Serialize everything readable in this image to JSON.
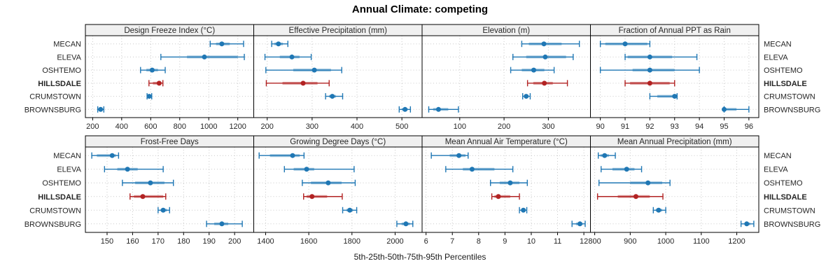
{
  "chart_data": {
    "type": "dotplot-trellis",
    "title": "Annual Climate: competing",
    "xlabel": "5th-25th-50th-75th-95th Percentiles",
    "percentiles": [
      "5th",
      "25th",
      "50th",
      "75th",
      "95th"
    ],
    "categories": [
      "MECAN",
      "ELEVA",
      "OSHTEMO",
      "HILLSDALE",
      "CRUMSTOWN",
      "BROWNSBURG"
    ],
    "highlight_category": "HILLSDALE",
    "legend_position": "none",
    "grid": true,
    "layout": {
      "rows": 2,
      "cols": 4
    },
    "colors": {
      "normal": "#1f77b4",
      "highlight": "#b22222",
      "strip_bg": "#f0f0f0",
      "grid": "#c9c9c9",
      "border": "#000000",
      "text": "#262626"
    },
    "panels": [
      {
        "title": "Design Freeze Index (°C)",
        "xlim": [
          150,
          1310
        ],
        "ticks": [
          200,
          400,
          600,
          800,
          1000,
          1200
        ],
        "series": [
          [
            1010,
            1050,
            1090,
            1145,
            1240
          ],
          [
            670,
            850,
            970,
            1200,
            1245
          ],
          [
            530,
            570,
            610,
            650,
            700
          ],
          [
            588,
            615,
            658,
            675,
            684
          ],
          [
            575,
            583,
            590,
            597,
            607
          ],
          [
            235,
            245,
            255,
            265,
            277
          ]
        ]
      },
      {
        "title": "Effective Precipitation (mm)",
        "xlim": [
          170,
          545
        ],
        "ticks": [
          200,
          300,
          400,
          500
        ],
        "series": [
          [
            210,
            216,
            225,
            235,
            246
          ],
          [
            195,
            228,
            255,
            272,
            298
          ],
          [
            197,
            258,
            305,
            342,
            366
          ],
          [
            198,
            234,
            280,
            312,
            338
          ],
          [
            330,
            338,
            345,
            353,
            368
          ],
          [
            494,
            500,
            507,
            513,
            519
          ]
        ]
      },
      {
        "title": "Elevation (m)",
        "xlim": [
          15,
          395
        ],
        "ticks": [
          100,
          200,
          300
        ],
        "series": [
          [
            240,
            256,
            290,
            330,
            370
          ],
          [
            220,
            250,
            293,
            340,
            356
          ],
          [
            215,
            240,
            267,
            291,
            313
          ],
          [
            253,
            266,
            291,
            310,
            343
          ],
          [
            242,
            246,
            250,
            255,
            259
          ],
          [
            30,
            40,
            52,
            74,
            97
          ]
        ]
      },
      {
        "title": "Fraction of Annual PPT as Rain",
        "xlim": [
          89.6,
          96.4
        ],
        "ticks": [
          90,
          91,
          92,
          93,
          94,
          95,
          96
        ],
        "series": [
          [
            90,
            90.2,
            91,
            91.9,
            92
          ],
          [
            91,
            91.1,
            92,
            92.9,
            93.9
          ],
          [
            90,
            91.3,
            92,
            93,
            94
          ],
          [
            91,
            91.2,
            92,
            92.8,
            93
          ],
          [
            92,
            92.3,
            93,
            93,
            93.1
          ],
          [
            95,
            95,
            95,
            95.5,
            96
          ]
        ]
      },
      {
        "title": "Frost-Free Days",
        "xlim": [
          141.5,
          207.5
        ],
        "ticks": [
          150,
          160,
          170,
          180,
          190,
          200
        ],
        "series": [
          [
            144,
            146,
            152,
            153.5,
            154.5
          ],
          [
            149,
            154,
            158,
            162,
            172
          ],
          [
            156,
            161,
            167,
            172.5,
            176
          ],
          [
            159,
            160.5,
            164,
            172,
            173
          ],
          [
            170,
            171,
            172,
            173.5,
            174.5
          ],
          [
            189,
            192,
            195,
            197.5,
            203
          ]
        ]
      },
      {
        "title": "Growing Degree Days (°C)",
        "xlim": [
          1345,
          2125
        ],
        "ticks": [
          1400,
          1600,
          1800,
          2000
        ],
        "series": [
          [
            1370,
            1420,
            1525,
            1558,
            1578
          ],
          [
            1487,
            1530,
            1590,
            1625,
            1810
          ],
          [
            1570,
            1610,
            1690,
            1752,
            1815
          ],
          [
            1576,
            1590,
            1615,
            1685,
            1755
          ],
          [
            1757,
            1775,
            1790,
            1805,
            1822
          ],
          [
            2008,
            2030,
            2050,
            2068,
            2082
          ]
        ]
      },
      {
        "title": "Mean Annual Air Temperature (°C)",
        "xlim": [
          5.85,
          12.25
        ],
        "ticks": [
          6,
          7,
          8,
          9,
          10,
          11,
          12
        ],
        "series": [
          [
            6.2,
            6.9,
            7.25,
            7.5,
            7.6
          ],
          [
            6.75,
            7.4,
            7.75,
            8.6,
            9.3
          ],
          [
            8.45,
            8.8,
            9.2,
            9.55,
            9.85
          ],
          [
            8.5,
            8.6,
            8.75,
            9.2,
            9.55
          ],
          [
            9.55,
            9.63,
            9.7,
            9.77,
            9.83
          ],
          [
            11.55,
            11.7,
            11.85,
            11.95,
            12.05
          ]
        ]
      },
      {
        "title": "Mean Annual Precipitation (mm)",
        "xlim": [
          788,
          1262
        ],
        "ticks": [
          800,
          900,
          1000,
          1100,
          1200
        ],
        "series": [
          [
            810,
            816,
            828,
            840,
            858
          ],
          [
            818,
            850,
            890,
            912,
            932
          ],
          [
            812,
            900,
            950,
            990,
            1012
          ],
          [
            808,
            865,
            916,
            955,
            992
          ],
          [
            965,
            972,
            980,
            990,
            1000
          ],
          [
            1212,
            1222,
            1228,
            1238,
            1248
          ]
        ]
      }
    ]
  }
}
